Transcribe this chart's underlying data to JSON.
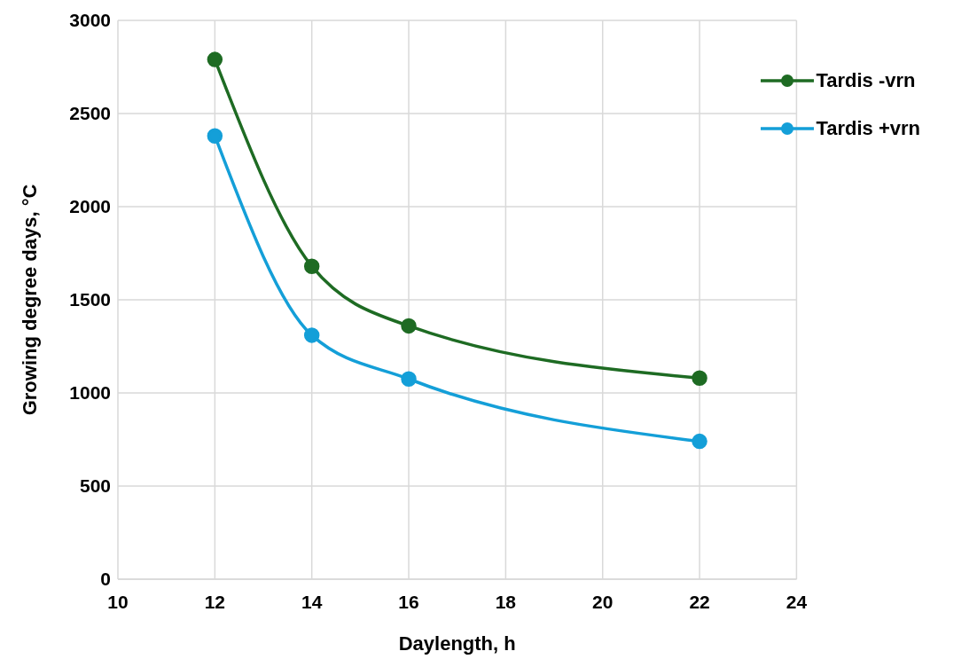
{
  "chart_data": {
    "type": "line",
    "xlabel": "Daylength, h",
    "ylabel": "Growing degree days, °C",
    "x": [
      12,
      14,
      16,
      22
    ],
    "series": [
      {
        "name": "Tardis -vrn",
        "color": "#1e6b23",
        "values": [
          2790,
          1680,
          1360,
          1080
        ]
      },
      {
        "name": "Tardis +vrn",
        "color": "#149fd8",
        "values": [
          2380,
          1310,
          1075,
          740
        ]
      }
    ],
    "xlim": [
      10,
      24
    ],
    "xticks": [
      10,
      12,
      14,
      16,
      18,
      20,
      22,
      24
    ],
    "ylim": [
      0,
      3000
    ],
    "yticks": [
      0,
      500,
      1000,
      1500,
      2000,
      2500,
      3000
    ],
    "grid": true,
    "legend": "top right",
    "marker": "circle",
    "line_style": "solid"
  }
}
